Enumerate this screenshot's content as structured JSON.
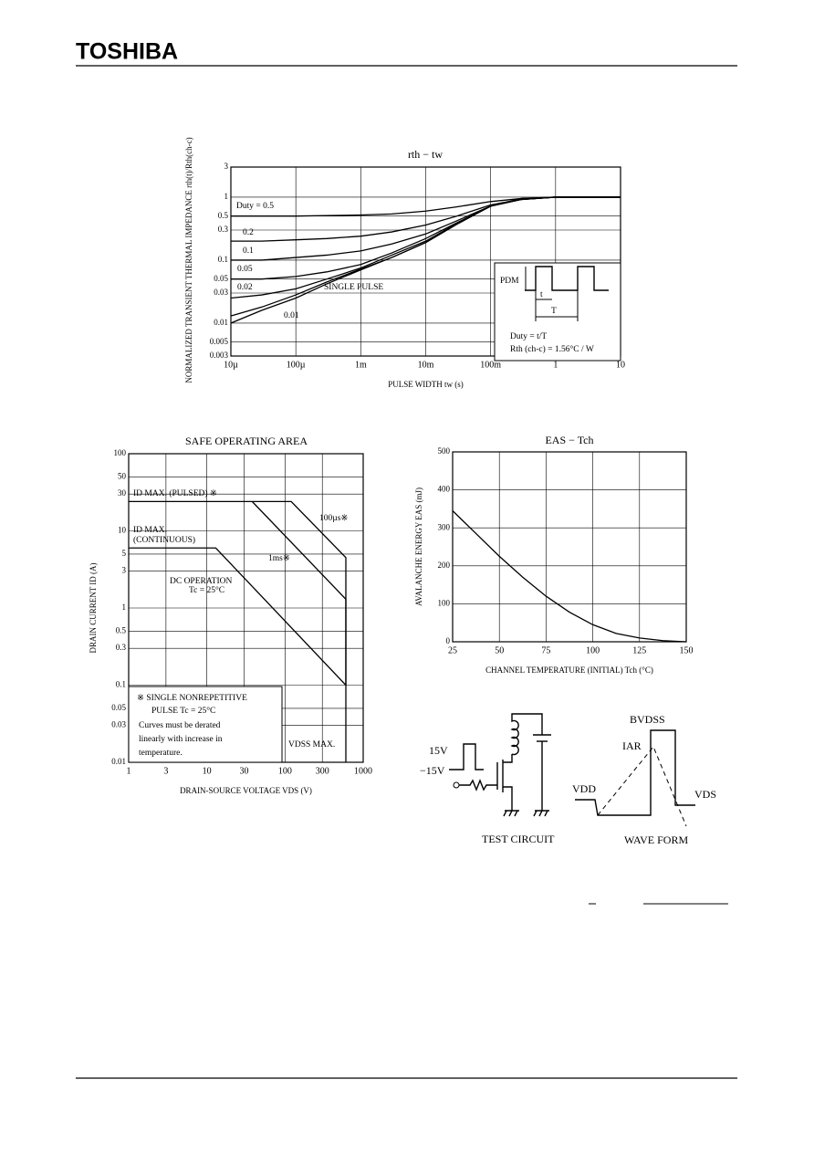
{
  "header": {
    "brand": "TOSHIBA"
  },
  "chart_data": [
    {
      "type": "line",
      "title": "rth − tw",
      "xlabel": "PULSE WIDTH   tw   (s)",
      "ylabel": "NORMALIZED TRANSIENT THERMAL IMPEDANCE   rth(t)/Rth(ch-c)",
      "xscale": "log",
      "yscale": "log",
      "grid": true,
      "color": "#000000",
      "xlim": [
        1e-05,
        10
      ],
      "ylim": [
        0.003,
        3
      ],
      "xticks": [
        {
          "value": 1e-05,
          "label": "10µ"
        },
        {
          "value": 0.0001,
          "label": "100µ"
        },
        {
          "value": 0.001,
          "label": "1m"
        },
        {
          "value": 0.01,
          "label": "10m"
        },
        {
          "value": 0.1,
          "label": "100m"
        },
        1,
        10
      ],
      "yticks": [
        0.003,
        0.005,
        0.01,
        0.03,
        0.05,
        0.1,
        0.3,
        0.5,
        1,
        3
      ],
      "x": [
        1e-05,
        3e-05,
        0.0001,
        0.0003,
        0.001,
        0.003,
        0.01,
        0.03,
        0.1,
        0.3,
        1,
        3,
        10
      ],
      "series": [
        {
          "name": "Duty = 0.5",
          "values": [
            0.5,
            0.5,
            0.5,
            0.51,
            0.52,
            0.54,
            0.6,
            0.7,
            0.85,
            0.95,
            1,
            1,
            1
          ]
        },
        {
          "name": "0.2",
          "values": [
            0.2,
            0.2,
            0.21,
            0.22,
            0.24,
            0.28,
            0.36,
            0.5,
            0.75,
            0.93,
            1,
            1,
            1
          ]
        },
        {
          "name": "0.1",
          "values": [
            0.1,
            0.1,
            0.11,
            0.12,
            0.14,
            0.18,
            0.26,
            0.42,
            0.72,
            0.92,
            1,
            1,
            1
          ]
        },
        {
          "name": "0.05",
          "values": [
            0.05,
            0.05,
            0.055,
            0.065,
            0.085,
            0.13,
            0.22,
            0.39,
            0.72,
            0.92,
            1,
            1,
            1
          ]
        },
        {
          "name": "0.02",
          "values": [
            0.025,
            0.028,
            0.035,
            0.05,
            0.075,
            0.12,
            0.2,
            0.38,
            0.72,
            0.92,
            1,
            1,
            1
          ]
        },
        {
          "name": "0.01",
          "values": [
            0.013,
            0.018,
            0.028,
            0.045,
            0.072,
            0.11,
            0.19,
            0.37,
            0.72,
            0.92,
            1,
            1,
            1
          ]
        },
        {
          "name": "SINGLE PULSE",
          "values": [
            0.01,
            0.016,
            0.025,
            0.042,
            0.07,
            0.11,
            0.19,
            0.37,
            0.72,
            0.95,
            1,
            1,
            1
          ]
        }
      ],
      "annotations": [
        "PDM",
        "t",
        "T",
        "Duty = t/T",
        "Rth (ch-c) = 1.56°C / W"
      ]
    },
    {
      "type": "line",
      "title": "SAFE OPERATING AREA",
      "xlabel": "DRAIN-SOURCE VOLTAGE   VDS   (V)",
      "ylabel": "DRAIN CURRENT   ID   (A)",
      "xscale": "log",
      "yscale": "log",
      "grid": true,
      "color": "#000000",
      "xlim": [
        1,
        1000
      ],
      "ylim": [
        0.01,
        100
      ],
      "xticks": [
        1,
        3,
        10,
        30,
        100,
        300,
        1000
      ],
      "yticks": [
        100,
        50,
        30,
        10,
        5,
        3,
        1,
        0.5,
        0.3,
        0.1,
        0.05,
        0.03,
        0.01
      ],
      "series": [
        {
          "name": "100µs※",
          "x": [
            1,
            120,
            600,
            600
          ],
          "values": [
            24,
            24,
            4.5,
            0.1
          ]
        },
        {
          "name": "1ms※",
          "x": [
            38,
            600,
            600
          ],
          "values": [
            24,
            1.3,
            0.1
          ]
        },
        {
          "name": "DC OPERATION",
          "x": [
            1,
            13,
            600,
            600
          ],
          "values": [
            6,
            6,
            0.1,
            0.01
          ]
        }
      ],
      "annotations": [
        "ID MAX. (PULSED) ※",
        "ID MAX.",
        "(CONTINUOUS)",
        "Tc = 25°C",
        "※  SINGLE NONREPETITIVE",
        "PULSE  Tc = 25°C",
        "Curves must be derated",
        "linearly with increase in",
        "temperature.",
        "VDSS MAX."
      ]
    },
    {
      "type": "line",
      "title": "EAS − Tch",
      "xlabel": "CHANNEL TEMPERATURE (INITIAL)   Tch   (°C)",
      "ylabel": "AVALANCHE ENERGY   EAS   (mJ)",
      "xscale": "linear",
      "yscale": "linear",
      "grid": true,
      "color": "#000000",
      "xlim": [
        25,
        150
      ],
      "ylim": [
        0,
        500
      ],
      "xticks": [
        25,
        50,
        75,
        100,
        125,
        150
      ],
      "yticks": [
        0,
        100,
        200,
        300,
        400,
        500
      ],
      "x": [
        25,
        37.5,
        50,
        62.5,
        75,
        87.5,
        100,
        112.5,
        125,
        137.5,
        150
      ],
      "series": [
        {
          "name": "EAS",
          "values": [
            345,
            285,
            225,
            170,
            120,
            78,
            45,
            22,
            10,
            3,
            0
          ]
        }
      ],
      "annotations": []
    }
  ],
  "diagram": {
    "labels": [
      "15V",
      "−15V",
      "TEST CIRCUIT",
      "BVDSS",
      "IAR",
      "VDD",
      "VDS",
      "WAVE FORM"
    ]
  }
}
